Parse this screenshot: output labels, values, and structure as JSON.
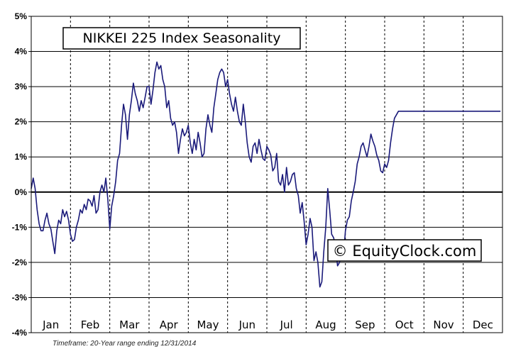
{
  "chart_data": {
    "type": "line",
    "title": "NIKKEI 225 Index Seasonality",
    "watermark": "© EquityClock.com",
    "footnote": "Timeframe: 20-Year range ending 12/31/2014",
    "xlabel": "",
    "ylabel": "",
    "ylim": [
      -4,
      5
    ],
    "y_ticks": [
      5,
      4,
      3,
      2,
      1,
      0,
      -1,
      -2,
      -3,
      -4
    ],
    "y_tick_labels": [
      "5%",
      "4%",
      "3%",
      "2%",
      "1%",
      "0%",
      "-1%",
      "-2%",
      "-3%",
      "-4%"
    ],
    "months": [
      "Jan",
      "Feb",
      "Mar",
      "Apr",
      "May",
      "Jun",
      "Jul",
      "Aug",
      "Sep",
      "Oct",
      "Nov",
      "Dec"
    ],
    "grid": true,
    "line_color": "#1a1a7a",
    "series": [
      {
        "name": "",
        "x": [
          0.0,
          0.05,
          0.1,
          0.15,
          0.2,
          0.25,
          0.3,
          0.35,
          0.4,
          0.45,
          0.5,
          0.55,
          0.6,
          0.65,
          0.7,
          0.75,
          0.8,
          0.85,
          0.9,
          0.95,
          1.0,
          1.05,
          1.1,
          1.15,
          1.2,
          1.25,
          1.3,
          1.35,
          1.4,
          1.45,
          1.5,
          1.55,
          1.6,
          1.65,
          1.7,
          1.75,
          1.8,
          1.85,
          1.9,
          1.95,
          2.0,
          2.05,
          2.1,
          2.15,
          2.2,
          2.25,
          2.3,
          2.35,
          2.4,
          2.45,
          2.5,
          2.55,
          2.6,
          2.65,
          2.7,
          2.75,
          2.8,
          2.85,
          2.9,
          2.95,
          3.0,
          3.05,
          3.1,
          3.15,
          3.2,
          3.25,
          3.3,
          3.35,
          3.4,
          3.45,
          3.5,
          3.55,
          3.6,
          3.65,
          3.7,
          3.75,
          3.8,
          3.85,
          3.9,
          3.95,
          4.0,
          4.05,
          4.1,
          4.15,
          4.2,
          4.25,
          4.3,
          4.35,
          4.4,
          4.45,
          4.5,
          4.55,
          4.6,
          4.65,
          4.7,
          4.75,
          4.8,
          4.85,
          4.9,
          4.95,
          5.0,
          5.05,
          5.1,
          5.15,
          5.2,
          5.25,
          5.3,
          5.35,
          5.4,
          5.45,
          5.5,
          5.55,
          5.6,
          5.65,
          5.7,
          5.75,
          5.8,
          5.85,
          5.9,
          5.95,
          6.0,
          6.05,
          6.1,
          6.15,
          6.2,
          6.25,
          6.3,
          6.35,
          6.4,
          6.45,
          6.5,
          6.55,
          6.6,
          6.65,
          6.7,
          6.75,
          6.8,
          6.85,
          6.9,
          6.95,
          7.0,
          7.05,
          7.1,
          7.15,
          7.2,
          7.25,
          7.3,
          7.35,
          7.4,
          7.45,
          7.5,
          7.55,
          7.6,
          7.65,
          7.7,
          7.75,
          7.8,
          7.85,
          7.9,
          7.95,
          8.0,
          8.05,
          8.1,
          8.15,
          8.2,
          8.25,
          8.3,
          8.35,
          8.4,
          8.45,
          8.5,
          8.55,
          8.6,
          8.65,
          8.7,
          8.75,
          8.8,
          8.85,
          8.9,
          8.95,
          9.0,
          9.05,
          9.1,
          9.15,
          9.2,
          9.25,
          9.3,
          9.35,
          9.4,
          9.45,
          9.5,
          9.55,
          9.6,
          9.65,
          9.7,
          9.75,
          9.8,
          9.85,
          9.9,
          9.95,
          10.0,
          10.05,
          10.1,
          10.15,
          10.2,
          10.25,
          10.3,
          10.35,
          10.4,
          10.45,
          10.5,
          10.55,
          10.6,
          10.65,
          10.7,
          10.75,
          10.8,
          10.85,
          10.9,
          10.95,
          11.0,
          11.05,
          11.1,
          11.15,
          11.2,
          11.25,
          11.3,
          11.35,
          11.4,
          11.45,
          11.5,
          11.55,
          11.6,
          11.65,
          11.7,
          11.75,
          11.8,
          11.85,
          11.9,
          11.95,
          12.0
        ],
        "values": [
          0.1,
          0.4,
          0.1,
          -0.5,
          -0.9,
          -1.1,
          -1.1,
          -0.8,
          -0.6,
          -0.9,
          -1.05,
          -1.4,
          -1.75,
          -1.1,
          -0.8,
          -0.9,
          -0.5,
          -0.7,
          -0.55,
          -0.8,
          -1.2,
          -1.4,
          -1.35,
          -1.0,
          -0.8,
          -0.5,
          -0.6,
          -0.35,
          -0.5,
          -0.2,
          -0.25,
          -0.4,
          -0.1,
          -0.6,
          -0.5,
          0.0,
          0.2,
          0.0,
          0.4,
          -0.2,
          -1.05,
          -0.4,
          -0.1,
          0.3,
          0.9,
          1.1,
          1.9,
          2.5,
          2.2,
          1.5,
          2.2,
          2.6,
          3.1,
          2.8,
          2.6,
          2.3,
          2.6,
          2.4,
          2.7,
          3.0,
          3.0,
          2.5,
          2.9,
          3.4,
          3.7,
          3.5,
          3.6,
          3.2,
          3.0,
          2.4,
          2.6,
          2.1,
          1.9,
          2.0,
          1.7,
          1.1,
          1.5,
          1.8,
          1.6,
          1.7,
          1.9,
          1.4,
          1.1,
          1.5,
          1.2,
          1.7,
          1.4,
          1.0,
          1.1,
          1.8,
          2.2,
          1.9,
          1.7,
          2.4,
          2.8,
          3.2,
          3.4,
          3.5,
          3.4,
          3.0,
          3.2,
          2.8,
          2.5,
          2.3,
          2.7,
          2.3,
          2.0,
          1.9,
          2.5,
          2.0,
          1.4,
          1.0,
          0.85,
          1.3,
          1.4,
          1.1,
          1.5,
          1.2,
          0.95,
          0.9,
          1.3,
          1.2,
          1.05,
          0.6,
          0.7,
          1.1,
          0.3,
          0.2,
          0.5,
          0.0,
          0.7,
          0.2,
          0.3,
          0.5,
          0.55,
          0.1,
          -0.1,
          -0.6,
          -0.3,
          -0.85,
          -1.5,
          -1.2,
          -0.75,
          -1.0,
          -1.95,
          -1.7,
          -2.0,
          -2.7,
          -2.55,
          -1.7,
          -1.0,
          0.1,
          -0.5,
          -1.2,
          -1.3,
          -1.55,
          -2.1,
          -2.0,
          -1.6,
          -1.8,
          -1.1,
          -0.8,
          -0.7,
          -0.25,
          0.0,
          0.3,
          0.8,
          1.0,
          1.3,
          1.4,
          1.2,
          1.0,
          1.3,
          1.65,
          1.45,
          1.3,
          1.05,
          0.9,
          0.6,
          0.55,
          0.8,
          0.7,
          0.9,
          1.4,
          1.8,
          2.1,
          2.2,
          2.3,
          2.3,
          2.3,
          2.3,
          2.3,
          2.3,
          2.3,
          2.3,
          2.3,
          2.3,
          2.3,
          2.3,
          2.3,
          2.3,
          2.3,
          2.3,
          2.3,
          2.3,
          2.3,
          2.3,
          2.3,
          2.3,
          2.3,
          2.3,
          2.3,
          2.3,
          2.3,
          2.3,
          2.3,
          2.3,
          2.3,
          2.3,
          2.3,
          2.3,
          2.3,
          2.3,
          2.3,
          2.3,
          2.3,
          2.3,
          2.3,
          2.3,
          2.3,
          2.3,
          2.3,
          2.3,
          2.3,
          2.3,
          2.3,
          2.3,
          2.3,
          2.3,
          2.3,
          2.3
        ]
      }
    ]
  }
}
